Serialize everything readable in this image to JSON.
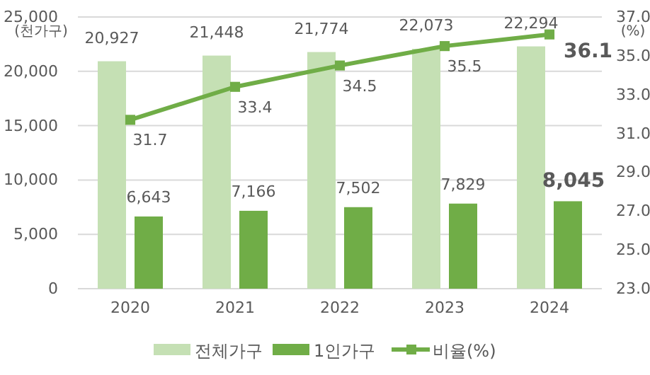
{
  "chart_data": {
    "type": "bar",
    "categories": [
      "2020",
      "2021",
      "2022",
      "2023",
      "2024"
    ],
    "ylabel": "(천가구)",
    "y2label": "(%)",
    "series": [
      {
        "name": "전체가구",
        "color": "#c5e0b4",
        "values": [
          20927,
          21448,
          21774,
          22073,
          22294
        ],
        "value_labels": [
          "20,927",
          "21,448",
          "21,774",
          "22,073",
          "22,294"
        ]
      },
      {
        "name": "1인가구",
        "color": "#70ad47",
        "values": [
          6643,
          7166,
          7502,
          7829,
          8045
        ],
        "value_labels": [
          "6,643",
          "7,166",
          "7,502",
          "7,829",
          "8,045"
        ]
      },
      {
        "name": "비율(%)",
        "type": "line",
        "axis": "y2",
        "color": "#70ad47",
        "values": [
          31.7,
          33.4,
          34.5,
          35.5,
          36.1
        ],
        "marker": "square"
      }
    ],
    "data_labels": true,
    "ylim": [
      0,
      25000
    ],
    "yticks": [
      0,
      {
        "value": 5000,
        "label": "5,000"
      },
      {
        "value": 10000,
        "label": "10,000"
      },
      {
        "value": 15000,
        "label": "15,000"
      },
      {
        "value": 20000,
        "label": "20,000"
      },
      {
        "value": 25000,
        "label": "25,000"
      }
    ],
    "y2lim": [
      23,
      37
    ],
    "y2ticks": [
      {
        "value": 23,
        "label": "23.0"
      },
      {
        "value": 25,
        "label": "25.0"
      },
      {
        "value": 27,
        "label": "27.0"
      },
      {
        "value": 29,
        "label": "29.0"
      },
      {
        "value": 31,
        "label": "31.0"
      },
      {
        "value": 33,
        "label": "33.0"
      },
      {
        "value": 35,
        "label": "35.0"
      },
      {
        "value": 37,
        "label": "37.0"
      }
    ],
    "grid": "y",
    "legend": "bottom"
  }
}
